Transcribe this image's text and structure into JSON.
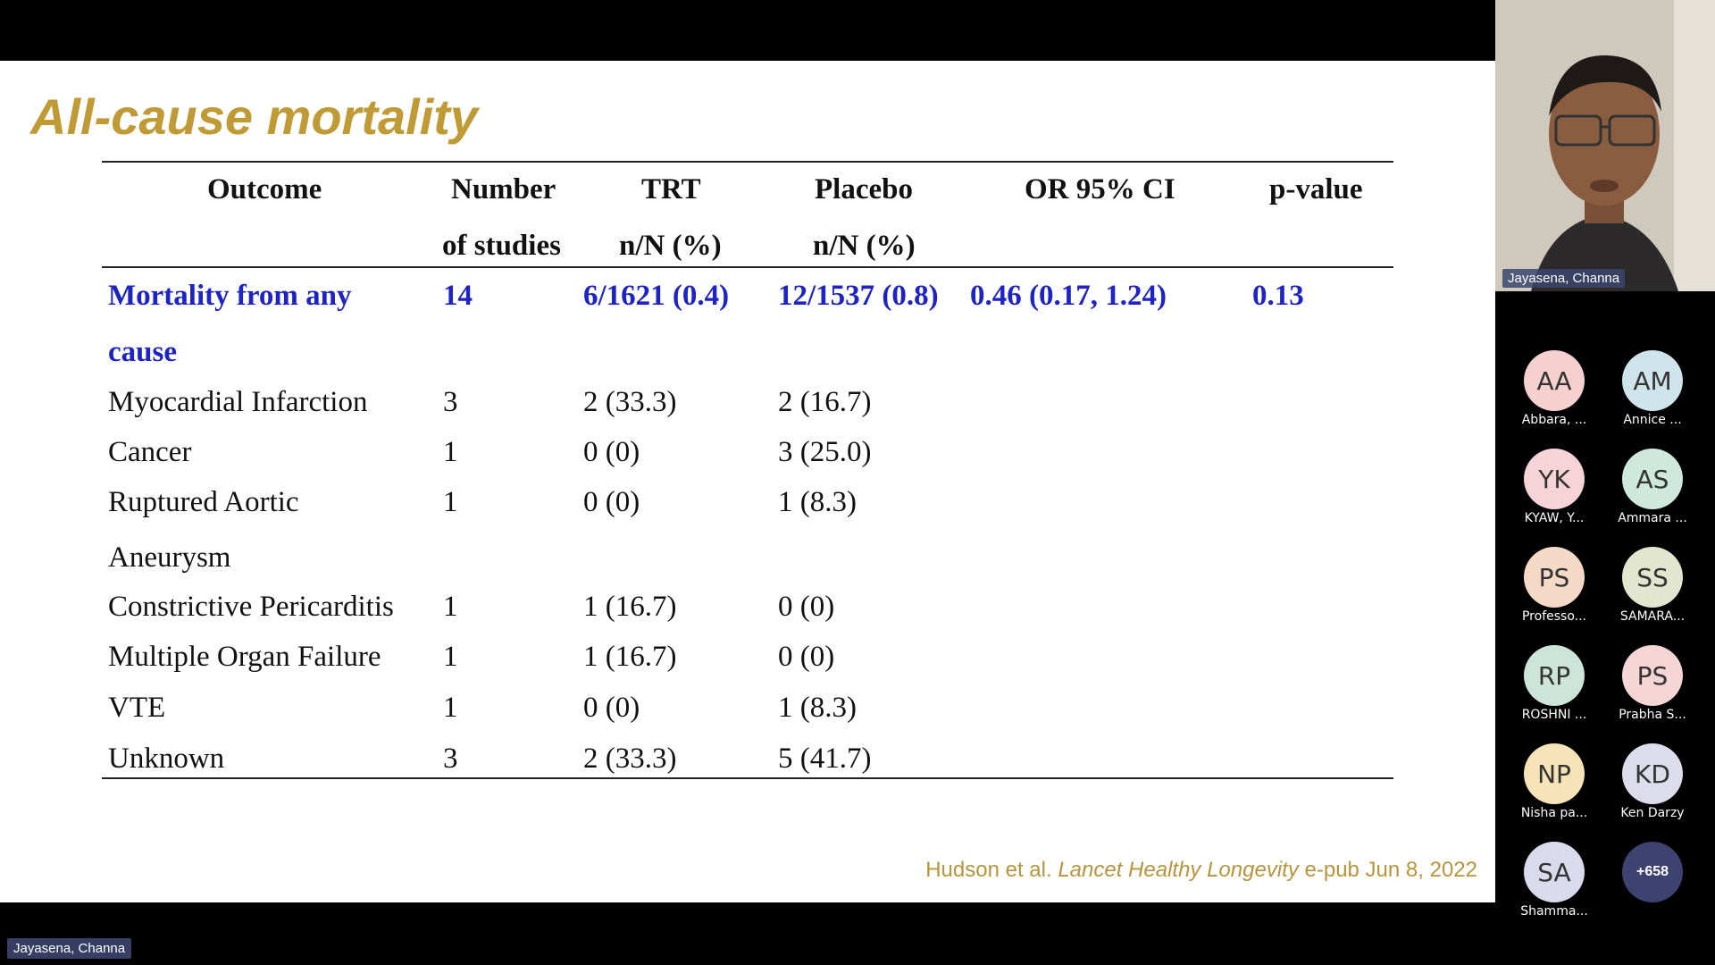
{
  "slide": {
    "title": "All-cause mortality",
    "header": {
      "outcome": "Outcome",
      "number_l1": "Number",
      "number_l2": "of studies",
      "trt_l1": "TRT",
      "trt_l2": "n/N (%)",
      "placebo_l1": "Placebo",
      "placebo_l2": "n/N (%)",
      "or": "OR 95% CI",
      "p": "p-value"
    },
    "highlight": {
      "outcome_l1": "Mortality from any",
      "outcome_l2": "cause",
      "number": "14",
      "trt": "6/1621 (0.4)",
      "placebo": "12/1537 (0.8)",
      "or": "0.46 (0.17, 1.24)",
      "p": "0.13"
    },
    "rows": [
      {
        "outcome": "Myocardial Infarction",
        "number": "3",
        "trt": "2 (33.3)",
        "placebo": "2 (16.7)"
      },
      {
        "outcome": "Cancer",
        "number": "1",
        "trt": "0 (0)",
        "placebo": "3 (25.0)"
      },
      {
        "outcome": "Ruptured Aortic",
        "outcome_l2": "Aneurysm",
        "number": "1",
        "trt": "0 (0)",
        "placebo": "1 (8.3)"
      },
      {
        "outcome": "Constrictive Pericarditis",
        "number": "1",
        "trt": "1 (16.7)",
        "placebo": "0 (0)"
      },
      {
        "outcome": "Multiple Organ Failure",
        "number": "1",
        "trt": "1 (16.7)",
        "placebo": "0 (0)"
      },
      {
        "outcome": "VTE",
        "number": "1",
        "trt": "0 (0)",
        "placebo": "1 (8.3)"
      },
      {
        "outcome": "Unknown",
        "number": "3",
        "trt": "2 (33.3)",
        "placebo": "5 (41.7)"
      }
    ],
    "citation": {
      "authors": "Hudson et al.",
      "journal": "Lancet Healthy Longevity",
      "date": "e-pub Jun 8, 2022"
    }
  },
  "meeting": {
    "speaker_name": "Jayasena, Channa",
    "shared_name": "Jayasena, Channa",
    "participants": [
      {
        "initials": "AA",
        "name": "Abbara, ...",
        "color": "#f6cfcf"
      },
      {
        "initials": "AM",
        "name": "Annice ...",
        "color": "#cfe3ea"
      },
      {
        "initials": "YK",
        "name": "KYAW, Y...",
        "color": "#f6d3d6"
      },
      {
        "initials": "AS",
        "name": "Ammara ...",
        "color": "#cfe8dc"
      },
      {
        "initials": "PS",
        "name": "Professo...",
        "color": "#f4d9c6"
      },
      {
        "initials": "SS",
        "name": "SAMARA...",
        "color": "#e3e6cf"
      },
      {
        "initials": "RP",
        "name": "ROSHNI ...",
        "color": "#cde4d8"
      },
      {
        "initials": "PS",
        "name": "Prabha S...",
        "color": "#f5d5d5"
      },
      {
        "initials": "NP",
        "name": "Nisha pa...",
        "color": "#f6e4b8"
      },
      {
        "initials": "KD",
        "name": "Ken Darzy",
        "color": "#dcdcea"
      },
      {
        "initials": "SA",
        "name": "Shamma...",
        "color": "#d9dbec"
      }
    ],
    "more_count": "+658"
  }
}
